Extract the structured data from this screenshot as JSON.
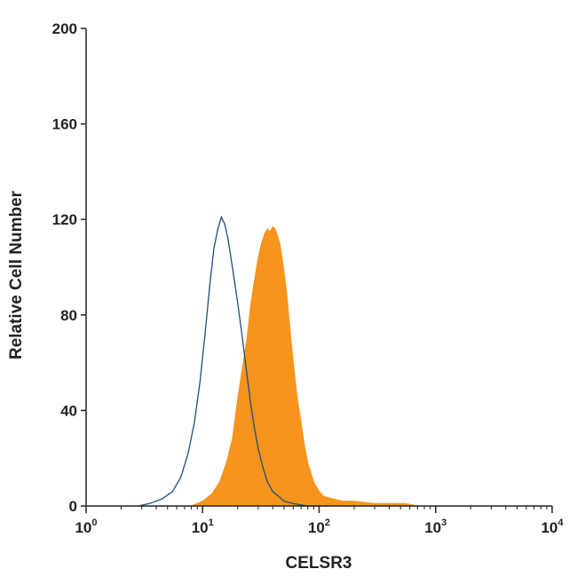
{
  "chart_data": {
    "type": "area",
    "title": "",
    "xlabel": "CELSR3",
    "ylabel": "Relative Cell Number",
    "xscale": "log",
    "xlim": [
      1,
      10000
    ],
    "ylim": [
      0,
      200
    ],
    "x_ticks": [
      {
        "value": 1,
        "base": "10",
        "exp": "0"
      },
      {
        "value": 10,
        "base": "10",
        "exp": "1"
      },
      {
        "value": 100,
        "base": "10",
        "exp": "2"
      },
      {
        "value": 1000,
        "base": "10",
        "exp": "3"
      },
      {
        "value": 10000,
        "base": "10",
        "exp": "4"
      }
    ],
    "y_ticks": [
      "0",
      "40",
      "80",
      "120",
      "160",
      "200"
    ],
    "grid": false,
    "legend": "none",
    "series": [
      {
        "style": "filled",
        "color": "#F7941D",
        "x": [
          8,
          10,
          12,
          14,
          16,
          18,
          20,
          22,
          24,
          26,
          28,
          30,
          32,
          34,
          36,
          38,
          40,
          42,
          44,
          46,
          48,
          50,
          53,
          56,
          60,
          65,
          70,
          75,
          80,
          90,
          100,
          110,
          130,
          160,
          200,
          300,
          400,
          550,
          700
        ],
        "y": [
          0,
          2,
          5,
          10,
          18,
          28,
          45,
          58,
          70,
          85,
          95,
          104,
          110,
          114,
          116,
          115,
          117,
          116,
          113,
          110,
          104,
          98,
          88,
          75,
          60,
          45,
          35,
          25,
          18,
          10,
          6,
          4,
          3,
          2,
          2,
          1,
          1,
          1,
          0
        ]
      },
      {
        "style": "outline",
        "color": "#1F4E79",
        "x": [
          2.8,
          3.5,
          4.5,
          5.5,
          6.5,
          7.5,
          8.5,
          9.5,
          10.5,
          11.5,
          12.5,
          13.5,
          14.5,
          15.5,
          16.5,
          18,
          20,
          22,
          24,
          26,
          28,
          30,
          33,
          36,
          40,
          45,
          50,
          60,
          80,
          120
        ],
        "y": [
          0,
          1,
          3,
          6,
          12,
          22,
          35,
          52,
          72,
          92,
          108,
          116,
          121,
          118,
          112,
          100,
          85,
          70,
          55,
          42,
          32,
          24,
          16,
          10,
          6,
          4,
          2,
          1,
          0,
          0
        ]
      }
    ]
  }
}
